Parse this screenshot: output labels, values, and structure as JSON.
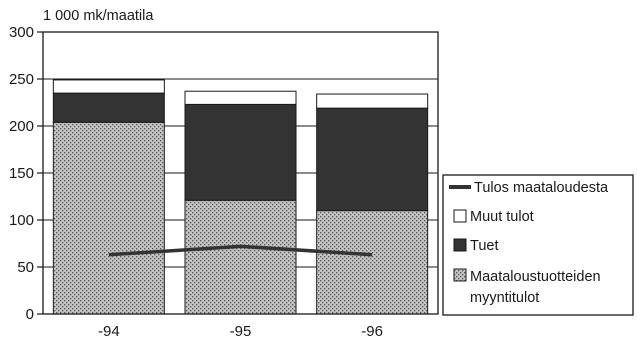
{
  "chart_data": {
    "type": "bar",
    "stacked": true,
    "unit_label": "1 000 mk/maatila",
    "categories": [
      "-94",
      "-95",
      "-96"
    ],
    "ylim": [
      0,
      300
    ],
    "yticks": [
      0,
      50,
      100,
      150,
      200,
      250,
      300
    ],
    "gridlines": true,
    "legend_position": "right",
    "series": [
      {
        "name": "Maataloustuotteiden myyntitulot",
        "kind": "bar",
        "values": [
          204,
          121,
          110
        ],
        "color": "#a9a9a9",
        "pattern": "stipple"
      },
      {
        "name": "Tuet",
        "kind": "bar",
        "values": [
          31,
          102,
          109
        ],
        "color": "#333333"
      },
      {
        "name": "Muut tulot",
        "kind": "bar",
        "values": [
          14,
          14,
          15
        ],
        "color": "#ffffff"
      },
      {
        "name": "Tulos maataloudesta",
        "kind": "line",
        "values": [
          63,
          72,
          63
        ],
        "color": "#333333"
      }
    ],
    "legend": [
      {
        "label": "Tulos maataloudesta",
        "symbol": "line"
      },
      {
        "label": "Muut tulot",
        "symbol": "box-white"
      },
      {
        "label": "Tuet",
        "symbol": "box-dark"
      },
      {
        "label": "Maataloustuotteiden",
        "label2": "myyntitulot",
        "symbol": "box-stipple"
      }
    ]
  }
}
